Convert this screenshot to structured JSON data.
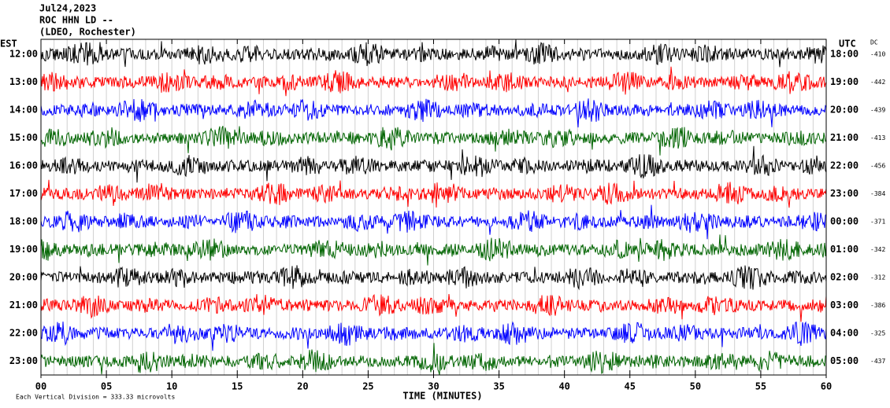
{
  "chart_data": {
    "type": "helicorder",
    "title_lines": [
      "Jul24,2023",
      "ROC HHN LD --",
      "(LDEO, Rochester)"
    ],
    "left_label": "EST",
    "right_label": "UTC",
    "dc_label": "DC",
    "categories": [
      "12:00",
      "13:00",
      "14:00",
      "15:00",
      "16:00",
      "17:00",
      "18:00",
      "19:00",
      "20:00",
      "21:00",
      "22:00",
      "23:00"
    ],
    "utc_labels": [
      "18:00",
      "19:00",
      "20:00",
      "21:00",
      "22:00",
      "23:00",
      "00:00",
      "01:00",
      "02:00",
      "03:00",
      "04:00",
      "05:00"
    ],
    "dc": [
      -410,
      -442,
      -439,
      -413,
      -456,
      -384,
      -371,
      -342,
      -312,
      -386,
      -325,
      -437
    ],
    "colors": [
      "#000000",
      "#ff0000",
      "#0000ff",
      "#006400",
      "#000000",
      "#ff0000",
      "#0000ff",
      "#006400",
      "#000000",
      "#ff0000",
      "#0000ff",
      "#006400"
    ],
    "xlim": [
      0,
      60
    ],
    "xticks": [
      {
        "value": 0,
        "label": "00"
      },
      {
        "value": 5,
        "label": "05"
      },
      {
        "value": 10,
        "label": "10"
      },
      {
        "value": 15,
        "label": "15"
      },
      {
        "value": 20,
        "label": "20"
      },
      {
        "value": 25,
        "label": "25"
      },
      {
        "value": 30,
        "label": "30"
      },
      {
        "value": 35,
        "label": "35"
      },
      {
        "value": 40,
        "label": "40"
      },
      {
        "value": 45,
        "label": "45"
      },
      {
        "value": 50,
        "label": "50"
      },
      {
        "value": 55,
        "label": "55"
      },
      {
        "value": 60,
        "label": "60"
      }
    ],
    "xlabel": "TIME (MINUTES)",
    "footer": "Each Vertical Division = 333.33 microvolts"
  }
}
